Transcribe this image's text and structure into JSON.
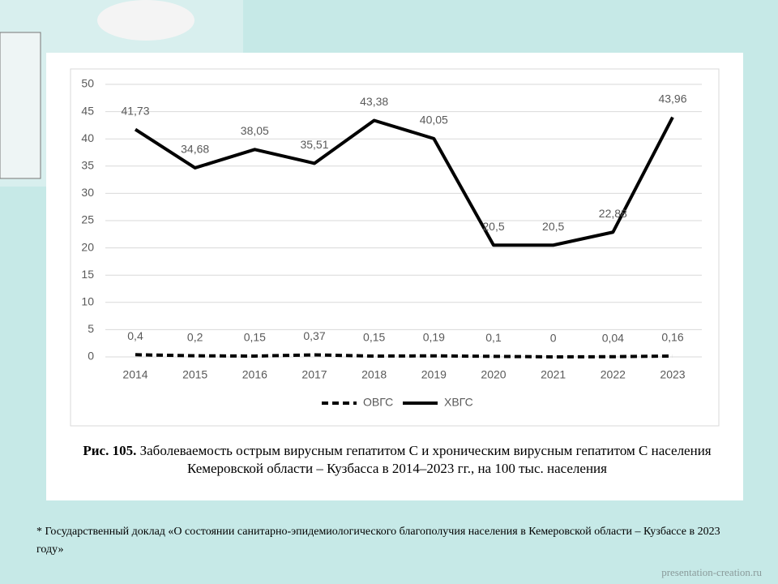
{
  "chart_data": {
    "type": "line",
    "categories": [
      "2014",
      "2015",
      "2016",
      "2017",
      "2018",
      "2019",
      "2020",
      "2021",
      "2022",
      "2023"
    ],
    "series": [
      {
        "name": "ОВГС",
        "color": "#000000",
        "line_style": "dashed",
        "values": [
          0.4,
          0.2,
          0.15,
          0.37,
          0.15,
          0.19,
          0.1,
          0,
          0.04,
          0.16
        ],
        "value_labels": [
          "0,4",
          "0,2",
          "0,15",
          "0,37",
          "0,15",
          "0,19",
          "0,1",
          "0",
          "0,04",
          "0,16"
        ]
      },
      {
        "name": "ХВГС",
        "color": "#000000",
        "line_style": "solid",
        "values": [
          41.73,
          34.68,
          38.05,
          35.51,
          43.38,
          40.05,
          20.5,
          20.5,
          22.88,
          43.96
        ],
        "value_labels": [
          "41,73",
          "34,68",
          "38,05",
          "35,51",
          "43,38",
          "40,05",
          "20,5",
          "20,5",
          "22,88",
          "43,96"
        ]
      }
    ],
    "ylim": [
      0,
      50
    ],
    "yticks": [
      0,
      5,
      10,
      15,
      20,
      25,
      30,
      35,
      40,
      45,
      50
    ],
    "grid": true,
    "legend": "bottom",
    "caption_label": "Рис. 105.",
    "caption": "Заболеваемость острым вирусным гепатитом С и хроническим вирусным гепатитом С населения Кемеровской области – Кузбасса в 2014–2023 гг., на 100 тыс. населения"
  },
  "footnote": "* Государственный доклад «О состоянии санитарно-эпидемиологического благополучия населения в Кемеровской области – Кузбассе в 2023 году»",
  "watermark": "presentation-creation.ru"
}
